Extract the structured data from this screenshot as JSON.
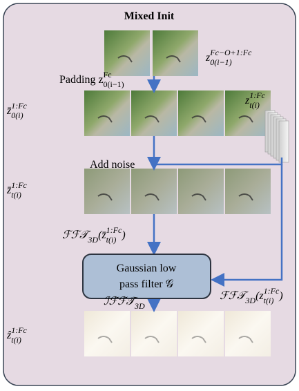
{
  "title": "Mixed Init",
  "filter": {
    "line1": "Gaussian low",
    "line2": "pass filter 𝒢"
  },
  "labels": {
    "previous_latent": [
      {
        "base": "z"
      },
      {
        "sup": "Fc−O+1:Fc"
      },
      {
        "sub": "0(i−1)"
      }
    ],
    "padding": [
      {
        "base": "Padding z"
      },
      {
        "sup": "Fc"
      },
      {
        "sub": "0(i−1)"
      }
    ],
    "noise": [
      {
        "base": "z"
      },
      {
        "sup": "1:Fc"
      },
      {
        "sub": "t(i)"
      }
    ],
    "padded_latent": [
      {
        "base": "z̄"
      },
      {
        "sup": "1:Fc"
      },
      {
        "sub": "0(i)"
      }
    ],
    "add_noise": [
      {
        "base": "Add noise"
      }
    ],
    "noisy_latent": [
      {
        "base": "z̄"
      },
      {
        "sup": "1:Fc"
      },
      {
        "sub": "t(i)"
      }
    ],
    "fft_noisy": [
      {
        "base": "ℱℱ𝒯"
      },
      {
        "sub": "3D"
      },
      {
        "base": "(z̄"
      },
      {
        "sup": "1:Fc"
      },
      {
        "sub": "t(i)"
      },
      {
        "base": ")"
      }
    ],
    "fft_noise": [
      {
        "base": "ℱℱ𝒯"
      },
      {
        "sub": "3D"
      },
      {
        "base": "(z"
      },
      {
        "sup": "1:Fc"
      },
      {
        "sub": "t(i)"
      },
      {
        "base": ")"
      }
    ],
    "ifft": [
      {
        "base": "ℐℱℱ𝒯"
      },
      {
        "sub": "3D"
      }
    ],
    "output_latent": [
      {
        "base": "ẑ"
      },
      {
        "sup": "1:Fc"
      },
      {
        "sub": "t(i)"
      }
    ]
  }
}
